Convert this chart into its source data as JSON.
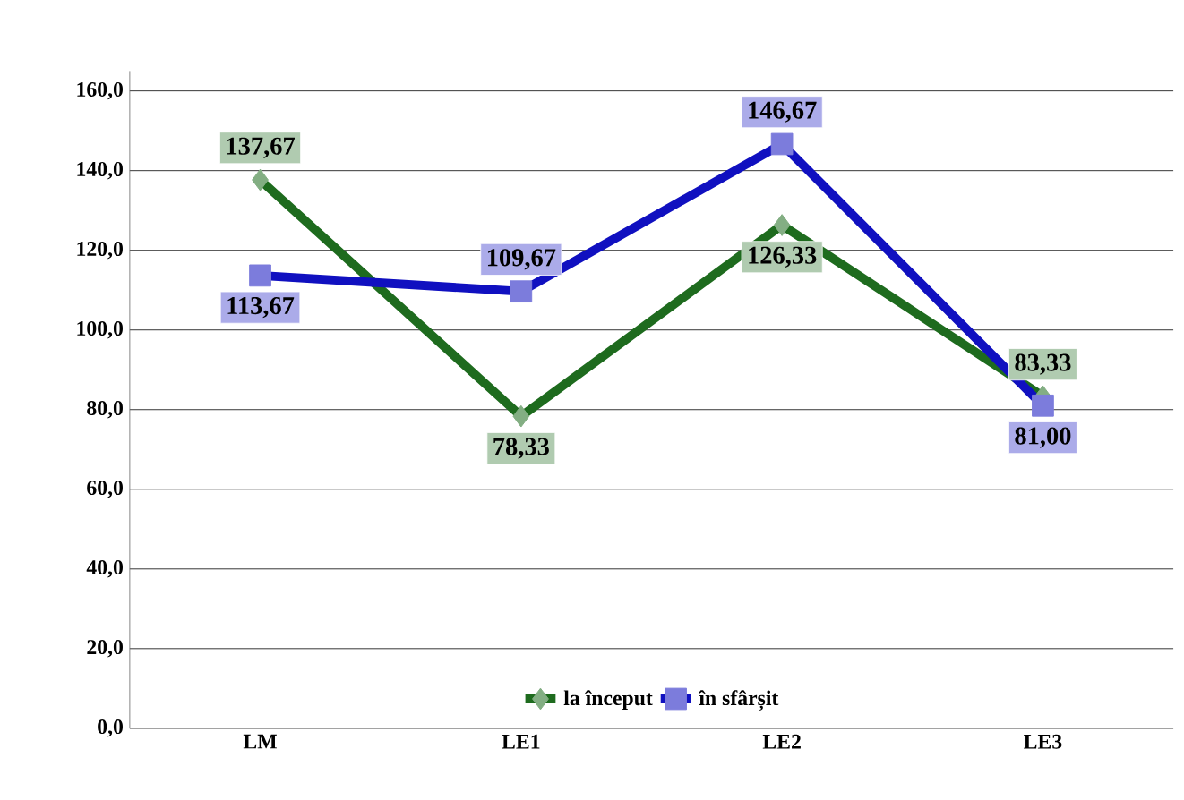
{
  "chart_data": {
    "type": "line",
    "categories": [
      "LM",
      "LE1",
      "LE2",
      "LE3"
    ],
    "series": [
      {
        "name": "la început",
        "color": "#1e6b1e",
        "marker": "diamond",
        "values": [
          137.67,
          78.33,
          126.33,
          83.33
        ],
        "value_labels": [
          "137,67",
          "78,33",
          "126,33",
          "83,33"
        ]
      },
      {
        "name": "în sfârșit",
        "color": "#1010c0",
        "marker": "square",
        "values": [
          113.67,
          109.67,
          146.67,
          81.0
        ],
        "value_labels": [
          "113,67",
          "109,67",
          "146,67",
          "81,00"
        ]
      }
    ],
    "ylim": [
      0,
      165
    ],
    "yticks": [
      {
        "value": 0,
        "label": "0,0"
      },
      {
        "value": 20,
        "label": "20,0"
      },
      {
        "value": 40,
        "label": "40,0"
      },
      {
        "value": 60,
        "label": "60,0"
      },
      {
        "value": 80,
        "label": "80,0"
      },
      {
        "value": 100,
        "label": "100,0"
      },
      {
        "value": 120,
        "label": "120,0"
      },
      {
        "value": 140,
        "label": "140,0"
      },
      {
        "value": 160,
        "label": "160,0"
      }
    ],
    "grid": "y",
    "legend": "bottom",
    "line_style": "solid"
  }
}
